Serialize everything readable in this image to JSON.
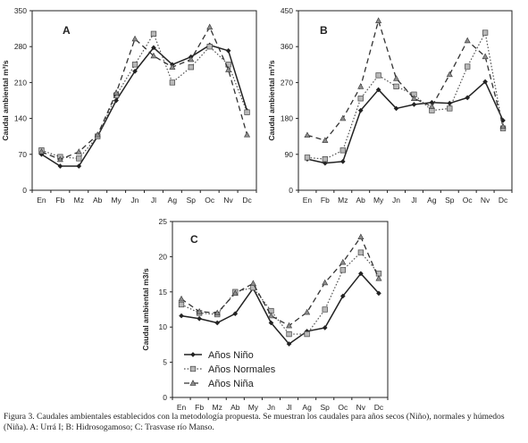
{
  "caption": "Figura 3. Caudales ambientales establecidos con la metodología propuesta. Se muestran los caudales para años secos (Niño), normales y húmedos (Niña). A: Urrá I; B: Hidrosogamoso; C: Trasvase río Manso.",
  "colors": {
    "nino": "#222222",
    "normales": "#555555",
    "nina": "#333333",
    "marker_fill_normales": "#b8b8b8",
    "marker_fill_nina": "#8c8c8c"
  },
  "legend": {
    "position": "bottom-left of panel C",
    "items": [
      {
        "key": "nino",
        "label": "Años Niño"
      },
      {
        "key": "normales",
        "label": "Años Normales"
      },
      {
        "key": "nina",
        "label": "Años Niña"
      }
    ]
  },
  "chart_data": [
    {
      "type": "line",
      "panel_label": "A",
      "ylabel": "Caudal ambiental m³/s",
      "ylim": [
        0,
        350
      ],
      "yticks": [
        0,
        70,
        140,
        210,
        280,
        350
      ],
      "categories": [
        "En",
        "Fb",
        "Mz",
        "Ab",
        "My",
        "Jn",
        "Jl",
        "Ag",
        "Sp",
        "Oc",
        "Nv",
        "Dc"
      ],
      "series": [
        {
          "key": "nino",
          "name": "Años Niño",
          "values": [
            70,
            47,
            47,
            105,
            175,
            232,
            278,
            245,
            260,
            283,
            272,
            155
          ]
        },
        {
          "key": "normales",
          "name": "Años Normales",
          "values": [
            78,
            65,
            62,
            105,
            185,
            245,
            305,
            210,
            240,
            280,
            245,
            152
          ]
        },
        {
          "key": "nina",
          "name": "Años Niña",
          "values": [
            75,
            60,
            75,
            108,
            190,
            295,
            262,
            240,
            255,
            318,
            235,
            108
          ]
        }
      ]
    },
    {
      "type": "line",
      "panel_label": "B",
      "ylabel": "Caudal ambiental m³/s",
      "ylim": [
        0,
        450
      ],
      "yticks": [
        0,
        90,
        180,
        270,
        360,
        450
      ],
      "categories": [
        "En",
        "Fb",
        "Mz",
        "Ab",
        "My",
        "Jn",
        "Jl",
        "Ag",
        "Sp",
        "Oc",
        "Nv",
        "Dc"
      ],
      "series": [
        {
          "key": "nino",
          "name": "Años Niño",
          "values": [
            78,
            68,
            72,
            200,
            252,
            205,
            215,
            220,
            218,
            232,
            272,
            175
          ]
        },
        {
          "key": "normales",
          "name": "Años Normales",
          "values": [
            82,
            78,
            100,
            230,
            288,
            260,
            240,
            200,
            205,
            310,
            395,
            155
          ]
        },
        {
          "key": "nina",
          "name": "Años Niña",
          "values": [
            138,
            125,
            180,
            260,
            425,
            280,
            230,
            210,
            290,
            375,
            335,
            160
          ]
        }
      ]
    },
    {
      "type": "line",
      "panel_label": "C",
      "ylabel": "Caudal ambiental m3/s",
      "ylim": [
        0,
        25
      ],
      "yticks": [
        0,
        5,
        10,
        15,
        20,
        25
      ],
      "categories": [
        "En",
        "Fb",
        "Mz",
        "Ab",
        "My",
        "Jn",
        "Jl",
        "Ag",
        "Sp",
        "Oc",
        "Nv",
        "Dc"
      ],
      "series": [
        {
          "key": "nino",
          "name": "Años Niño",
          "values": [
            11.6,
            11.2,
            10.6,
            11.9,
            15.5,
            10.6,
            7.6,
            9.4,
            9.9,
            14.4,
            17.6,
            14.8
          ]
        },
        {
          "key": "normales",
          "name": "Años Normales",
          "values": [
            13.2,
            12.0,
            11.8,
            15.0,
            15.6,
            12.3,
            9.0,
            9.0,
            12.5,
            18.1,
            20.6,
            17.6
          ]
        },
        {
          "key": "nina",
          "name": "Años Niña",
          "values": [
            14.0,
            12.2,
            12.0,
            14.8,
            16.2,
            11.6,
            10.2,
            12.1,
            16.3,
            19.2,
            22.8,
            16.9
          ]
        }
      ]
    }
  ]
}
